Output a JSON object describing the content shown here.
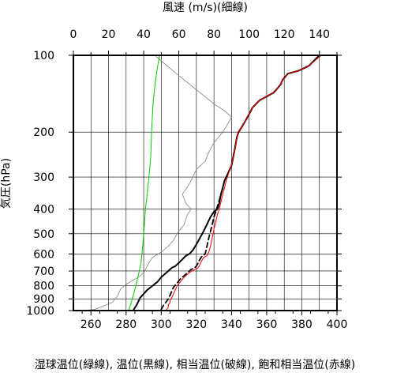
{
  "chart_data": {
    "type": "line",
    "top_axis": {
      "label": "風速 (m/s)(細線)",
      "range": [
        0,
        150
      ],
      "ticks": [
        0,
        20,
        40,
        60,
        80,
        100,
        120,
        140
      ]
    },
    "bottom_axis": {
      "label": "湿球温位(緑線), 温位(黒線), 相当温位(破線), 飽和相当温位(赤線)",
      "range": [
        250,
        400
      ],
      "ticks": [
        260,
        280,
        300,
        320,
        340,
        360,
        380,
        400
      ]
    },
    "y_axis": {
      "label": "気圧(hPa)",
      "scale": "log",
      "reversed": true,
      "range": [
        1000,
        100
      ],
      "ticks": [
        100,
        200,
        300,
        400,
        500,
        600,
        700,
        800,
        900,
        1000
      ]
    },
    "grid": true,
    "series": [
      {
        "key": "wind_speed",
        "axis": "top",
        "color": "#808080",
        "style": "thin",
        "points": [
          [
            5,
            1000
          ],
          [
            12,
            990
          ],
          [
            17,
            960
          ],
          [
            22,
            930
          ],
          [
            25,
            880
          ],
          [
            26,
            850
          ],
          [
            27,
            820
          ],
          [
            30,
            790
          ],
          [
            34,
            760
          ],
          [
            37,
            740
          ],
          [
            40,
            710
          ],
          [
            41,
            690
          ],
          [
            42,
            670
          ],
          [
            43,
            650
          ],
          [
            45,
            620
          ],
          [
            50,
            590
          ],
          [
            54,
            560
          ],
          [
            57,
            530
          ],
          [
            59,
            500
          ],
          [
            61,
            480
          ],
          [
            63,
            460
          ],
          [
            64,
            440
          ],
          [
            65,
            420
          ],
          [
            67,
            400
          ],
          [
            64,
            380
          ],
          [
            63,
            365
          ],
          [
            62,
            350
          ],
          [
            64,
            335
          ],
          [
            66,
            318
          ],
          [
            68,
            300
          ],
          [
            70,
            280
          ],
          [
            75,
            260
          ],
          [
            77,
            240
          ],
          [
            80,
            220
          ],
          [
            85,
            200
          ],
          [
            88,
            185
          ],
          [
            90,
            175
          ],
          [
            86,
            165
          ],
          [
            80,
            155
          ],
          [
            72,
            140
          ],
          [
            65,
            128
          ],
          [
            58,
            117
          ],
          [
            52,
            108
          ],
          [
            47,
            101
          ]
        ]
      },
      {
        "key": "wet_bulb_potential_temperature",
        "axis": "bottom",
        "color": "#00cc00",
        "style": "solid",
        "points": [
          [
            281.5,
            1000
          ],
          [
            282.5,
            950
          ],
          [
            283.5,
            900
          ],
          [
            284.5,
            850
          ],
          [
            285.5,
            800
          ],
          [
            286.5,
            750
          ],
          [
            287.5,
            700
          ],
          [
            288.5,
            650
          ],
          [
            289,
            600
          ],
          [
            289.5,
            550
          ],
          [
            290,
            500
          ],
          [
            290.5,
            450
          ],
          [
            291,
            400
          ],
          [
            292,
            350
          ],
          [
            293,
            300
          ],
          [
            294,
            250
          ],
          [
            294.5,
            200
          ],
          [
            295,
            170
          ],
          [
            295.5,
            150
          ],
          [
            296.5,
            130
          ],
          [
            297.5,
            115
          ],
          [
            298.5,
            105
          ],
          [
            299,
            100
          ]
        ]
      },
      {
        "key": "potential_temperature",
        "axis": "bottom",
        "color": "#000000",
        "style": "thick",
        "points": [
          [
            284,
            1000
          ],
          [
            285,
            975
          ],
          [
            286,
            950
          ],
          [
            287,
            920
          ],
          [
            288,
            890
          ],
          [
            290,
            860
          ],
          [
            292,
            830
          ],
          [
            295,
            800
          ],
          [
            298,
            770
          ],
          [
            300,
            740
          ],
          [
            302,
            720
          ],
          [
            304,
            700
          ],
          [
            306,
            680
          ],
          [
            308,
            670
          ],
          [
            310,
            650
          ],
          [
            312,
            630
          ],
          [
            314,
            610
          ],
          [
            316,
            600
          ],
          [
            318,
            580
          ],
          [
            320,
            550
          ],
          [
            322,
            520
          ],
          [
            324,
            490
          ],
          [
            326,
            460
          ],
          [
            328,
            430
          ],
          [
            330,
            410
          ],
          [
            332,
            400
          ],
          [
            333,
            380
          ],
          [
            334,
            350
          ],
          [
            335,
            330
          ],
          [
            336,
            310
          ],
          [
            337,
            300
          ],
          [
            338,
            290
          ],
          [
            339,
            280
          ],
          [
            340,
            270
          ],
          [
            341,
            250
          ],
          [
            342,
            230
          ],
          [
            343,
            210
          ],
          [
            344,
            200
          ],
          [
            346,
            190
          ],
          [
            348,
            180
          ],
          [
            350,
            170
          ],
          [
            352,
            160
          ],
          [
            356,
            150
          ],
          [
            360,
            145
          ],
          [
            364,
            140
          ],
          [
            366,
            135
          ],
          [
            368,
            130
          ],
          [
            369,
            125
          ],
          [
            372,
            118
          ],
          [
            378,
            115
          ],
          [
            384,
            110
          ],
          [
            390,
            100
          ]
        ]
      },
      {
        "key": "equivalent_potential_temperature",
        "axis": "bottom",
        "color": "#000000",
        "style": "dashed",
        "points": [
          [
            300,
            990
          ],
          [
            301,
            960
          ],
          [
            302,
            940
          ],
          [
            303,
            920
          ],
          [
            304,
            900
          ],
          [
            305,
            870
          ],
          [
            306,
            840
          ],
          [
            307,
            810
          ],
          [
            309,
            780
          ],
          [
            311,
            750
          ],
          [
            313,
            730
          ],
          [
            315,
            710
          ],
          [
            317,
            690
          ],
          [
            319,
            680
          ],
          [
            320,
            670
          ],
          [
            321,
            650
          ],
          [
            322,
            630
          ],
          [
            323,
            615
          ],
          [
            325,
            600
          ],
          [
            326,
            560
          ],
          [
            327,
            520
          ],
          [
            328,
            490
          ],
          [
            329,
            460
          ],
          [
            330,
            430
          ],
          [
            331,
            410
          ],
          [
            332,
            390
          ],
          [
            333,
            370
          ],
          [
            334,
            350
          ],
          [
            335,
            330
          ],
          [
            336,
            310
          ],
          [
            337,
            300
          ],
          [
            338,
            290
          ],
          [
            339,
            280
          ],
          [
            340,
            270
          ],
          [
            341,
            250
          ],
          [
            342,
            230
          ],
          [
            343,
            210
          ],
          [
            344,
            200
          ],
          [
            346,
            190
          ],
          [
            348,
            180
          ],
          [
            350,
            170
          ],
          [
            352,
            160
          ],
          [
            356,
            150
          ],
          [
            360,
            145
          ],
          [
            364,
            140
          ],
          [
            366,
            135
          ],
          [
            368,
            130
          ],
          [
            369,
            125
          ],
          [
            372,
            118
          ],
          [
            378,
            115
          ],
          [
            384,
            110
          ],
          [
            390,
            100
          ]
        ]
      },
      {
        "key": "saturated_equivalent_potential_temperature",
        "axis": "bottom",
        "color": "#ff0000",
        "style": "solid",
        "points": [
          [
            303,
            995
          ],
          [
            304,
            970
          ],
          [
            304,
            950
          ],
          [
            305,
            930
          ],
          [
            305,
            910
          ],
          [
            306,
            890
          ],
          [
            307,
            860
          ],
          [
            308,
            830
          ],
          [
            309,
            800
          ],
          [
            311,
            770
          ],
          [
            313,
            740
          ],
          [
            316,
            710
          ],
          [
            319,
            690
          ],
          [
            321,
            680
          ],
          [
            322,
            660
          ],
          [
            323,
            640
          ],
          [
            324,
            620
          ],
          [
            326,
            610
          ],
          [
            327,
            590
          ],
          [
            328,
            560
          ],
          [
            329,
            520
          ],
          [
            330,
            480
          ],
          [
            331,
            450
          ],
          [
            332,
            420
          ],
          [
            333,
            400
          ],
          [
            334,
            375
          ],
          [
            335,
            350
          ],
          [
            336,
            330
          ],
          [
            337,
            310
          ],
          [
            338,
            295
          ],
          [
            339,
            280
          ],
          [
            340,
            268
          ],
          [
            341,
            250
          ],
          [
            342,
            232
          ],
          [
            343,
            212
          ],
          [
            344,
            200
          ],
          [
            346,
            190
          ],
          [
            348,
            180
          ],
          [
            350,
            170
          ],
          [
            352,
            160
          ],
          [
            356,
            150
          ],
          [
            360,
            145
          ],
          [
            364,
            140
          ],
          [
            366,
            135
          ],
          [
            368,
            130
          ],
          [
            369,
            125
          ],
          [
            372,
            118
          ],
          [
            378,
            115
          ],
          [
            384,
            110
          ],
          [
            391,
            100
          ]
        ]
      }
    ]
  }
}
